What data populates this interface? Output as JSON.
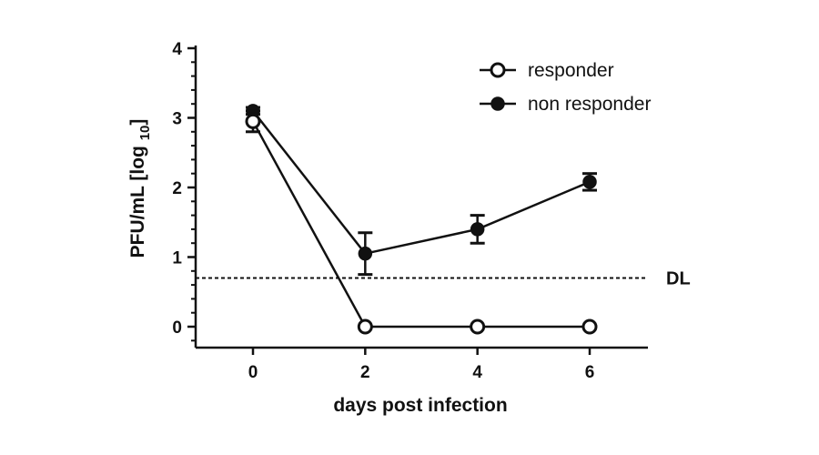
{
  "chart_data": {
    "type": "line",
    "xlabel": "days post infection",
    "ylabel": "PFU/mL [log ",
    "ylabel_sub": "10",
    "ylabel_close": "]",
    "x": [
      0,
      2,
      4,
      6
    ],
    "xlim": [
      -1,
      7
    ],
    "ylim": [
      -0.3,
      4
    ],
    "x_ticks": [
      "0",
      "2",
      "4",
      "6"
    ],
    "y_ticks": [
      "0",
      "1",
      "2",
      "3",
      "4"
    ],
    "series": [
      {
        "name": "responder",
        "marker": "open-circle",
        "values": [
          2.95,
          0,
          0,
          0
        ],
        "err": [
          0.15,
          0,
          0,
          0
        ]
      },
      {
        "name": "non responder",
        "marker": "filled-circle",
        "values": [
          3.1,
          1.05,
          1.4,
          2.08
        ],
        "err": [
          0.05,
          0.3,
          0.2,
          0.12
        ]
      }
    ],
    "reference_line": {
      "label": "DL",
      "y": 0.7,
      "style": "dashed"
    },
    "legend_position": "top-right",
    "grid": false,
    "colors": {
      "line": "#111111",
      "open_fill": "#ffffff",
      "filled_fill": "#111111"
    }
  }
}
